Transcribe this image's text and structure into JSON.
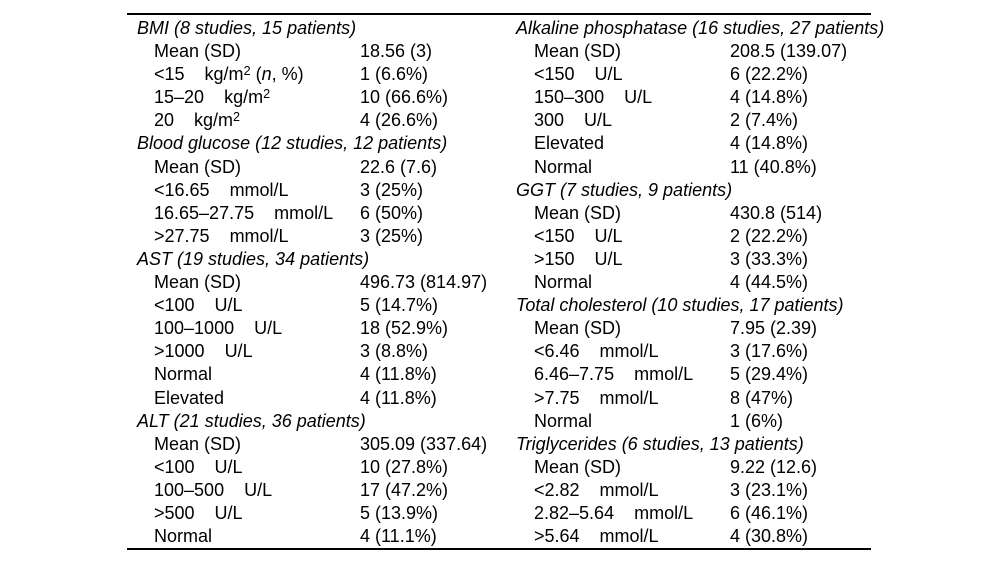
{
  "page": {
    "background_color": "#ffffff",
    "text_color": "#000000",
    "rule_color": "#000000"
  },
  "table": {
    "columns": [
      {
        "name": "left",
        "sections": [
          {
            "header": "BMI (8 studies, 15 patients)",
            "rows": [
              {
                "label": "Mean (SD)",
                "value": "18.56 (3)"
              },
              {
                "label": "<15",
                "unit": "kg/m",
                "unit_sup": "2",
                "suffix_parts": [
                  " (",
                  "n",
                  ", %)"
                ],
                "value": "1 (6.6%)"
              },
              {
                "label": "15–20",
                "unit": "kg/m",
                "unit_sup": "2",
                "value": "10 (66.6%)"
              },
              {
                "label": "20",
                "unit": "kg/m",
                "unit_sup": "2",
                "value": "4 (26.6%)"
              }
            ]
          },
          {
            "header": "Blood glucose (12 studies, 12 patients)",
            "rows": [
              {
                "label": "Mean (SD)",
                "value": "22.6 (7.6)"
              },
              {
                "label": "<16.65",
                "unit": "mmol/L",
                "value": "3 (25%)"
              },
              {
                "label": "16.65–27.75",
                "unit": "mmol/L",
                "value": "6 (50%)"
              },
              {
                "label": ">27.75",
                "unit": "mmol/L",
                "value": "3 (25%)"
              }
            ]
          },
          {
            "header": "AST (19 studies, 34 patients)",
            "rows": [
              {
                "label": "Mean (SD)",
                "value": "496.73 (814.97)"
              },
              {
                "label": "<100",
                "unit": "U/L",
                "value": "5 (14.7%)"
              },
              {
                "label": "100–1000",
                "unit": "U/L",
                "value": "18 (52.9%)"
              },
              {
                "label": ">1000",
                "unit": "U/L",
                "value": "3 (8.8%)"
              },
              {
                "label": "Normal",
                "value": "4 (11.8%)"
              },
              {
                "label": "Elevated",
                "value": "4 (11.8%)"
              }
            ]
          },
          {
            "header": "ALT (21 studies, 36 patients)",
            "rows": [
              {
                "label": "Mean (SD)",
                "value": "305.09 (337.64)"
              },
              {
                "label": "<100",
                "unit": "U/L",
                "value": "10 (27.8%)"
              },
              {
                "label": "100–500",
                "unit": "U/L",
                "value": "17 (47.2%)"
              },
              {
                "label": ">500",
                "unit": "U/L",
                "value": "5 (13.9%)"
              },
              {
                "label": "Normal",
                "value": "4 (11.1%)"
              }
            ]
          }
        ]
      },
      {
        "name": "right",
        "sections": [
          {
            "header": "Alkaline phosphatase (16 studies, 27 patients)",
            "rows": [
              {
                "label": "Mean (SD)",
                "value": "208.5 (139.07)"
              },
              {
                "label": "<150",
                "unit": "U/L",
                "value": "6 (22.2%)"
              },
              {
                "label": "150–300",
                "unit": "U/L",
                "value": "4 (14.8%)"
              },
              {
                "label": "300",
                "unit": "U/L",
                "value": "2 (7.4%)"
              },
              {
                "label": "Elevated",
                "value": "4 (14.8%)"
              },
              {
                "label": "Normal",
                "value": "11 (40.8%)"
              }
            ]
          },
          {
            "header": "GGT (7 studies, 9 patients)",
            "rows": [
              {
                "label": "Mean (SD)",
                "value": "430.8 (514)"
              },
              {
                "label": "<150",
                "unit": "U/L",
                "value": "2 (22.2%)"
              },
              {
                "label": ">150",
                "unit": "U/L",
                "value": "3 (33.3%)"
              },
              {
                "label": "Normal",
                "value": "4 (44.5%)"
              }
            ]
          },
          {
            "header": "Total cholesterol (10 studies, 17 patients)",
            "rows": [
              {
                "label": "Mean (SD)",
                "value": "7.95 (2.39)"
              },
              {
                "label": "<6.46",
                "unit": "mmol/L",
                "value": "3 (17.6%)"
              },
              {
                "label": "6.46–7.75",
                "unit": "mmol/L",
                "value": "5 (29.4%)"
              },
              {
                "label": ">7.75",
                "unit": "mmol/L",
                "value": "8 (47%)"
              },
              {
                "label": "Normal",
                "value": "1 (6%)"
              }
            ]
          },
          {
            "header": "Triglycerides (6 studies, 13 patients)",
            "rows": [
              {
                "label": "Mean (SD)",
                "value": "9.22 (12.6)"
              },
              {
                "label": "<2.82",
                "unit": "mmol/L",
                "value": "3 (23.1%)"
              },
              {
                "label": "2.82–5.64",
                "unit": "mmol/L",
                "value": "6 (46.1%)"
              },
              {
                "label": ">5.64",
                "unit": "mmol/L",
                "value": "4 (30.8%)"
              }
            ]
          }
        ]
      }
    ]
  }
}
